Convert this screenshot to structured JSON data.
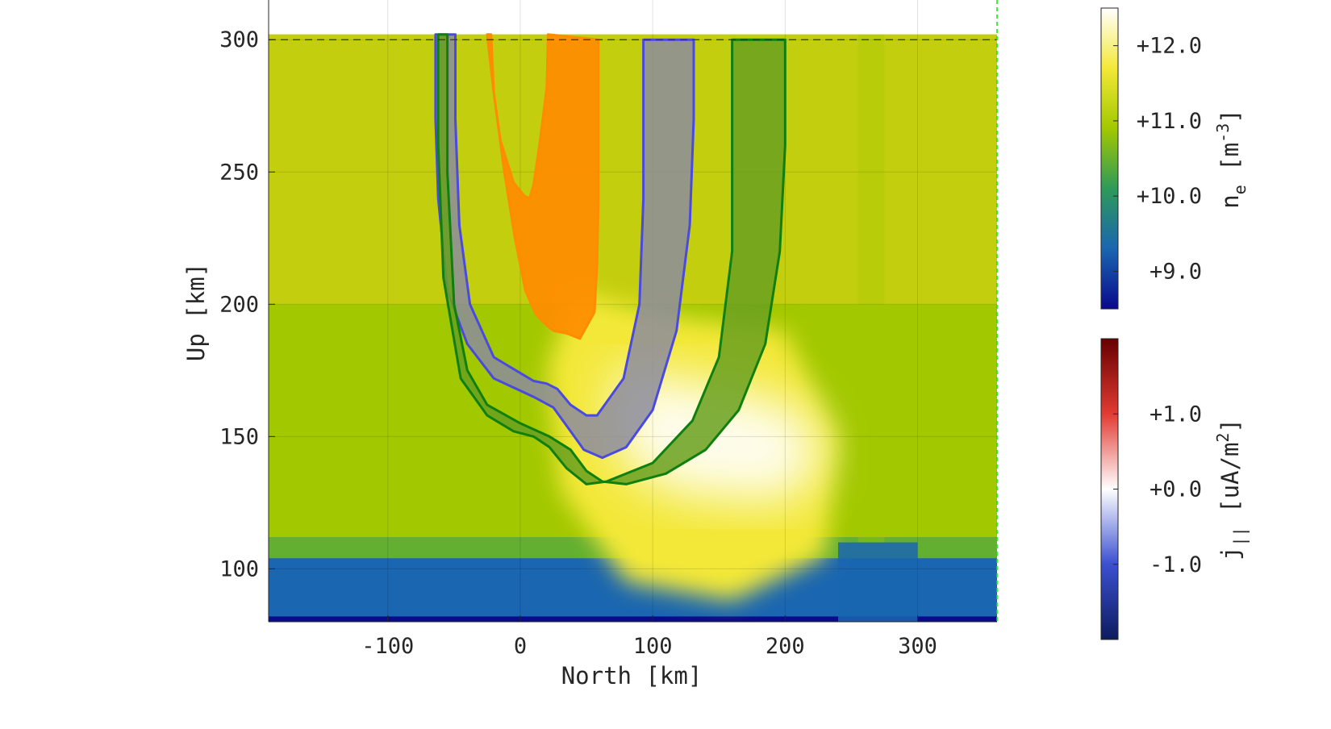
{
  "chart_data": {
    "type": "heatmap",
    "xlabel": "North [km]",
    "ylabel": "Up [km]",
    "xlim": [
      -190,
      360
    ],
    "ylim": [
      80,
      315
    ],
    "x_ticks": [
      -100,
      0,
      100,
      200,
      300
    ],
    "y_ticks": [
      100,
      150,
      200,
      250,
      300
    ],
    "x_tick_labels": [
      "-100",
      "0",
      "100",
      "200",
      "300"
    ],
    "y_tick_labels": [
      "100",
      "150",
      "200",
      "250",
      "300"
    ],
    "grid": true,
    "reference_line": {
      "y": 300,
      "style": "dashed"
    },
    "field": {
      "name_prefix": "n",
      "name_subscript": "e",
      "unit_prefix": "[m",
      "unit_superscript": "-3",
      "unit_suffix": "]",
      "scale": "log10",
      "range": [
        8.5,
        12.5
      ],
      "tick_values": [
        9,
        10,
        11,
        12
      ],
      "tick_labels": [
        "+9.0",
        "+10.0",
        "+11.0",
        "+12.0"
      ],
      "colors": [
        "#0a0a8c",
        "#1a66b0",
        "#2e9a5a",
        "#a2c800",
        "#f3e838",
        "#ffffff"
      ]
    },
    "overlay_colorbar": {
      "name_prefix": "j",
      "name_subscript": "||",
      "unit_prefix": "[uA/m",
      "unit_superscript": "2",
      "unit_suffix": "]",
      "range": [
        -2,
        2
      ],
      "tick_values": [
        -1,
        0,
        1
      ],
      "tick_labels": [
        "-1.0",
        "+0.0",
        "+1.0"
      ],
      "colors": [
        "#0d1b5e",
        "#3b50d0",
        "#ffffff",
        "#e23b33",
        "#660000"
      ]
    },
    "flux_tubes": [
      {
        "color": "#ff8c00",
        "left_edge": [
          [
            -22,
            302
          ],
          [
            -20,
            280
          ],
          [
            -15,
            262
          ],
          [
            -5,
            246
          ],
          [
            3,
            241
          ],
          [
            7,
            240
          ],
          [
            10,
            245
          ],
          [
            15,
            262
          ],
          [
            20,
            282
          ],
          [
            21,
            302
          ]
        ],
        "right_edge": [
          [
            59,
            300
          ],
          [
            59,
            270
          ],
          [
            59,
            240
          ],
          [
            58,
            215
          ],
          [
            56,
            197
          ],
          [
            45,
            187
          ],
          [
            35,
            189
          ],
          [
            25,
            190
          ],
          [
            20,
            192
          ],
          [
            12,
            196
          ],
          [
            4,
            205
          ],
          [
            -4,
            225
          ],
          [
            -12,
            250
          ],
          [
            -20,
            280
          ],
          [
            -25,
            302
          ]
        ]
      },
      {
        "color": "#4a4ae0",
        "fill": "#8c8c9c",
        "left_edge": [
          [
            -49,
            302
          ],
          [
            -49,
            270
          ],
          [
            -46,
            230
          ],
          [
            -38,
            200
          ],
          [
            -20,
            180
          ],
          [
            10,
            171
          ],
          [
            20,
            170
          ],
          [
            28,
            168
          ],
          [
            38,
            162
          ],
          [
            50,
            158
          ],
          [
            58,
            158
          ],
          [
            78,
            172
          ],
          [
            90,
            200
          ],
          [
            93,
            240
          ],
          [
            93,
            300
          ]
        ],
        "right_edge": [
          [
            131,
            300
          ],
          [
            131,
            270
          ],
          [
            128,
            230
          ],
          [
            118,
            190
          ],
          [
            100,
            160
          ],
          [
            80,
            146
          ],
          [
            62,
            142
          ],
          [
            48,
            145
          ],
          [
            38,
            152
          ],
          [
            25,
            161
          ],
          [
            10,
            165
          ],
          [
            -20,
            172
          ],
          [
            -40,
            185
          ],
          [
            -55,
            205
          ],
          [
            -62,
            240
          ],
          [
            -64,
            270
          ],
          [
            -64,
            302
          ]
        ]
      },
      {
        "color": "#0f7f0f",
        "fill": "#6aa01e",
        "left_edge": [
          [
            -62,
            302
          ],
          [
            -62,
            260
          ],
          [
            -58,
            210
          ],
          [
            -45,
            172
          ],
          [
            -25,
            158
          ],
          [
            -5,
            152
          ],
          [
            10,
            150
          ],
          [
            22,
            146
          ],
          [
            35,
            138
          ],
          [
            50,
            132
          ],
          [
            65,
            133
          ],
          [
            100,
            140
          ],
          [
            130,
            156
          ],
          [
            150,
            180
          ],
          [
            160,
            220
          ],
          [
            160,
            300
          ]
        ],
        "right_edge": [
          [
            200,
            300
          ],
          [
            200,
            260
          ],
          [
            196,
            220
          ],
          [
            185,
            185
          ],
          [
            165,
            160
          ],
          [
            140,
            145
          ],
          [
            110,
            136
          ],
          [
            80,
            132
          ],
          [
            62,
            133
          ],
          [
            50,
            137
          ],
          [
            38,
            145
          ],
          [
            22,
            150
          ],
          [
            0,
            155
          ],
          [
            -25,
            162
          ],
          [
            -40,
            175
          ],
          [
            -50,
            200
          ],
          [
            -55,
            250
          ],
          [
            -55,
            302
          ]
        ]
      }
    ]
  }
}
